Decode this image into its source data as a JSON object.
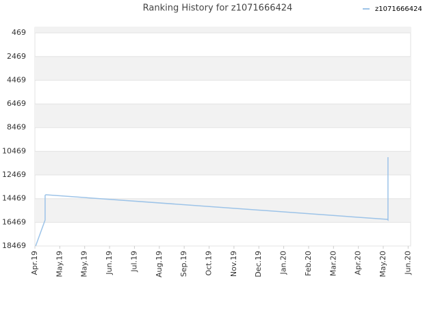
{
  "chart_data": {
    "type": "line",
    "title": "Ranking History for z1071666424",
    "x": [
      0.03,
      0.41,
      0.41,
      0.44,
      14.16,
      14.19,
      14.19
    ],
    "series": [
      {
        "name": "z1071666424",
        "color": "#9cc3e8",
        "values": [
          18469,
          16276,
          14198,
          14140,
          16218,
          16276,
          10966
        ]
      }
    ],
    "xlim": [
      0,
      15.1
    ],
    "xticks": [
      {
        "value": 0,
        "label": "Apr.19"
      },
      {
        "value": 1,
        "label": "May.19"
      },
      {
        "value": 2,
        "label": "May.19"
      },
      {
        "value": 3,
        "label": "Jun.19"
      },
      {
        "value": 4,
        "label": "Jul.19"
      },
      {
        "value": 5,
        "label": "Aug.19"
      },
      {
        "value": 6,
        "label": "Sep.19"
      },
      {
        "value": 7,
        "label": "Oct.19"
      },
      {
        "value": 8,
        "label": "Nov.19"
      },
      {
        "value": 9,
        "label": "Dec.19"
      },
      {
        "value": 10,
        "label": "Jan.20"
      },
      {
        "value": 11,
        "label": "Feb.20"
      },
      {
        "value": 12,
        "label": "Mar.20"
      },
      {
        "value": 13,
        "label": "Apr.20"
      },
      {
        "value": 14,
        "label": "May.20"
      },
      {
        "value": 15,
        "label": "Jun.20"
      }
    ],
    "ylim": [
      18469,
      0
    ],
    "yticks": [
      469,
      2469,
      4469,
      6469,
      8469,
      10469,
      12469,
      14469,
      16469,
      18469
    ],
    "grid": true,
    "legend": "top-right"
  }
}
